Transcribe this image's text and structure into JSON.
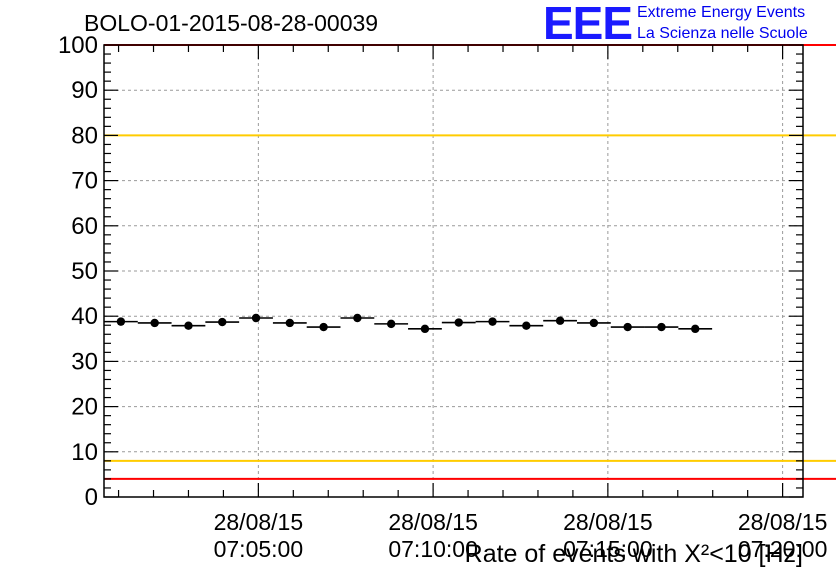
{
  "title": "BOLO-01-2015-08-28-00039",
  "logo": {
    "mark": "EEE",
    "line1": "Extreme Energy Events",
    "line2": "La Scienza nelle Scuole"
  },
  "chart_data": {
    "type": "scatter",
    "title": "BOLO-01-2015-08-28-00039",
    "xlabel": "Rate of events with X²<10 [Hz]",
    "ylabel": "",
    "ylim": [
      0,
      100
    ],
    "yticks": [
      0,
      10,
      20,
      30,
      40,
      50,
      60,
      70,
      80,
      90,
      100
    ],
    "xticks": [
      {
        "date": "28/08/15",
        "time": "07:05:00"
      },
      {
        "date": "28/08/15",
        "time": "07:10:00"
      },
      {
        "date": "28/08/15",
        "time": "07:15:00"
      },
      {
        "date": "28/08/15",
        "time": "07:20:00"
      }
    ],
    "xrange": [
      "07:00:35",
      "07:20:35"
    ],
    "bin_seconds": 58,
    "grid": true,
    "points": [
      {
        "t": "07:01:04",
        "y": 38.8
      },
      {
        "t": "07:02:02",
        "y": 38.5
      },
      {
        "t": "07:03:00",
        "y": 37.9
      },
      {
        "t": "07:03:58",
        "y": 38.7
      },
      {
        "t": "07:04:56",
        "y": 39.6
      },
      {
        "t": "07:05:54",
        "y": 38.5
      },
      {
        "t": "07:06:52",
        "y": 37.6
      },
      {
        "t": "07:07:50",
        "y": 39.6
      },
      {
        "t": "07:08:48",
        "y": 38.3
      },
      {
        "t": "07:09:46",
        "y": 37.2
      },
      {
        "t": "07:10:44",
        "y": 38.6
      },
      {
        "t": "07:11:42",
        "y": 38.8
      },
      {
        "t": "07:12:40",
        "y": 37.9
      },
      {
        "t": "07:13:38",
        "y": 39.0
      },
      {
        "t": "07:14:36",
        "y": 38.5
      },
      {
        "t": "07:15:34",
        "y": 37.6
      },
      {
        "t": "07:16:32",
        "y": 37.6
      },
      {
        "t": "07:17:30",
        "y": 37.2
      }
    ],
    "reference_lines": [
      {
        "y": 100,
        "color": "#ff0000"
      },
      {
        "y": 80,
        "color": "#ffcc00"
      },
      {
        "y": 8,
        "color": "#ffcc00"
      },
      {
        "y": 4,
        "color": "#ff0000"
      }
    ]
  }
}
